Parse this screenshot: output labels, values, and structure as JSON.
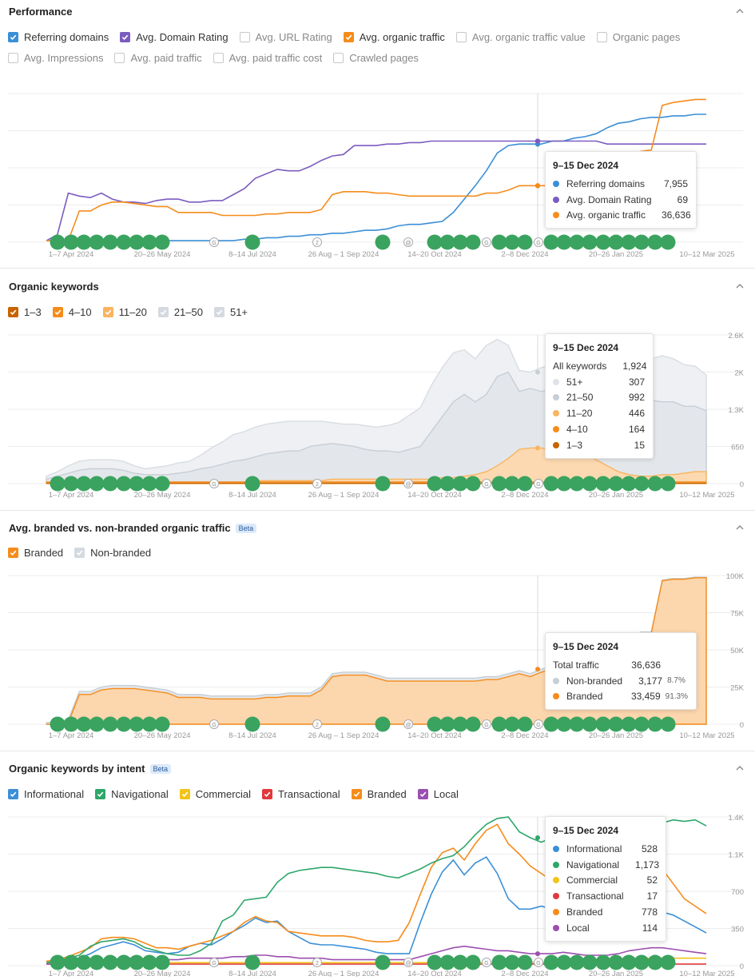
{
  "colors": {
    "referring_domains": "#3b8fd6",
    "domain_rating": "#7b5cbf",
    "organic_traffic": "#f58c1b",
    "kw_1_3": "#c86400",
    "kw_4_10": "#f58c1b",
    "kw_11_20": "#f9b461",
    "kw_21_50": "#c7ced6",
    "kw_51": "#dfe3e8",
    "branded": "#f58c1b",
    "non_branded": "#c7ced6",
    "informational": "#3b8fd6",
    "navigational": "#2ea66a",
    "commercial": "#f2c41a",
    "transactional": "#e0393e",
    "local": "#9b4fb0",
    "event_marker": "#3aa35f"
  },
  "x_axis_labels": [
    "1–7 Apr 2024",
    "20–26 May 2024",
    "8–14 Jul 2024",
    "26 Aug – 1 Sep 2024",
    "14–20 Oct 2024",
    "2–8 Dec 2024",
    "20–26 Jan 2025",
    "10–12 Mar 2025"
  ],
  "performance": {
    "title": "Performance",
    "metrics": [
      {
        "label": "Referring domains",
        "checked": true,
        "color": "#3b8fd6"
      },
      {
        "label": "Avg. Domain Rating",
        "checked": true,
        "color": "#7b5cbf"
      },
      {
        "label": "Avg. URL Rating",
        "checked": false
      },
      {
        "label": "Avg. organic traffic",
        "checked": true,
        "color": "#f58c1b"
      },
      {
        "label": "Avg. organic traffic value",
        "checked": false
      },
      {
        "label": "Organic pages",
        "checked": false
      },
      {
        "label": "Avg. Impressions",
        "checked": false
      },
      {
        "label": "Avg. paid traffic",
        "checked": false
      },
      {
        "label": "Avg. paid traffic cost",
        "checked": false
      },
      {
        "label": "Crawled pages",
        "checked": false
      }
    ],
    "tooltip": {
      "date": "9–15 Dec 2024",
      "rows": [
        {
          "label": "Referring domains",
          "value": "7,955",
          "color": "#3b8fd6"
        },
        {
          "label": "Avg. Domain Rating",
          "value": "69",
          "color": "#7b5cbf"
        },
        {
          "label": "Avg. organic traffic",
          "value": "36,636",
          "color": "#f58c1b"
        }
      ]
    }
  },
  "organic_keywords": {
    "title": "Organic keywords",
    "legend": [
      {
        "label": "1–3",
        "color": "#c86400"
      },
      {
        "label": "4–10",
        "color": "#f58c1b"
      },
      {
        "label": "11–20",
        "color": "#f9b461"
      },
      {
        "label": "21–50",
        "color": "#c7ced6"
      },
      {
        "label": "51+",
        "color": "#dfe3e8"
      }
    ],
    "y_ticks": [
      "2.6K",
      "2K",
      "1.3K",
      "650",
      "0"
    ],
    "tooltip": {
      "date": "9–15 Dec 2024",
      "total_label": "All keywords",
      "total_value": "1,924",
      "rows": [
        {
          "label": "51+",
          "value": "307",
          "color": "#dfe3e8"
        },
        {
          "label": "21–50",
          "value": "992",
          "color": "#c7ced6"
        },
        {
          "label": "11–20",
          "value": "446",
          "color": "#f9b461"
        },
        {
          "label": "4–10",
          "value": "164",
          "color": "#f58c1b"
        },
        {
          "label": "1–3",
          "value": "15",
          "color": "#c86400"
        }
      ]
    }
  },
  "branded_traffic": {
    "title": "Avg. branded vs. non-branded organic traffic",
    "beta": "Beta",
    "legend": [
      {
        "label": "Branded",
        "color": "#f58c1b"
      },
      {
        "label": "Non-branded",
        "color": "#c7ced6"
      }
    ],
    "y_ticks": [
      "100K",
      "75K",
      "50K",
      "25K",
      "0"
    ],
    "tooltip": {
      "date": "9–15 Dec 2024",
      "total_label": "Total traffic",
      "total_value": "36,636",
      "rows": [
        {
          "label": "Non-branded",
          "value": "3,177",
          "pct": "8.7%",
          "color": "#c7ced6"
        },
        {
          "label": "Branded",
          "value": "33,459",
          "pct": "91.3%",
          "color": "#f58c1b"
        }
      ]
    }
  },
  "intent": {
    "title": "Organic keywords by intent",
    "beta": "Beta",
    "legend": [
      {
        "label": "Informational",
        "color": "#3b8fd6"
      },
      {
        "label": "Navigational",
        "color": "#2ea66a"
      },
      {
        "label": "Commercial",
        "color": "#f2c41a"
      },
      {
        "label": "Transactional",
        "color": "#e0393e"
      },
      {
        "label": "Branded",
        "color": "#f58c1b"
      },
      {
        "label": "Local",
        "color": "#9b4fb0"
      }
    ],
    "y_ticks": [
      "1.4K",
      "1.1K",
      "700",
      "350",
      "0"
    ],
    "tooltip": {
      "date": "9–15 Dec 2024",
      "rows": [
        {
          "label": "Informational",
          "value": "528",
          "color": "#3b8fd6"
        },
        {
          "label": "Navigational",
          "value": "1,173",
          "color": "#2ea66a"
        },
        {
          "label": "Commercial",
          "value": "52",
          "color": "#f2c41a"
        },
        {
          "label": "Transactional",
          "value": "17",
          "color": "#e0393e"
        },
        {
          "label": "Branded",
          "value": "778",
          "color": "#f58c1b"
        },
        {
          "label": "Local",
          "value": "114",
          "color": "#9b4fb0"
        }
      ]
    }
  }
}
